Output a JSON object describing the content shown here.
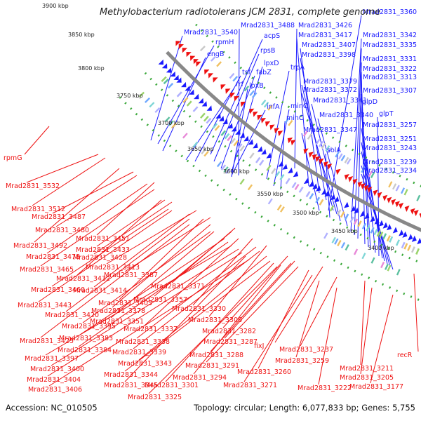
{
  "title": "Methylobacterium radiotolerans JCM 2831, complete genome",
  "footer": {
    "accession": "Accession: NC_010505",
    "topology": "Topology: circular; Length: 6,077,833 bp; Genes: 5,755"
  },
  "kbp_ticks": [
    "3900 kbp",
    "3850 kbp",
    "3800 kbp",
    "3750 kbp",
    "3700 kbp",
    "3650 kbp",
    "3600 kbp",
    "3550 kbp",
    "3500 kbp",
    "3450 kbp",
    "3400 kbp"
  ],
  "colors": {
    "forward_strand": "#1a1aff",
    "reverse_strand": "#ee1111",
    "backbone": "#888888",
    "ring_dash": "#3aa83a"
  },
  "forward_labels": [
    "Mrad2831_3360",
    "Mrad2831_3488",
    "Mrad2831_3426",
    "Mrad2831_3540",
    "acpS",
    "Mrad2831_3417",
    "Mrad2831_3342",
    "rpmH",
    "Mrad2831_3407",
    "Mrad2831_3335",
    "rpsB",
    "Mrad2831_3398",
    "engB",
    "lpxD",
    "Mrad2831_3331",
    "trpA",
    "Mrad2831_3322",
    "tsf",
    "fabZ",
    "Mrad2831_3313",
    "rrf",
    "lpxB",
    "Mrad2831_3379",
    "Mrad2831_3372",
    "Mrad2831_3307",
    "glpD",
    "Mrad2831_3341",
    "infA",
    "minC",
    "Mrad2831_3340",
    "glpT",
    "minC",
    "Mrad2831_3257",
    "Mrad2831_3347",
    "Mrad2831_3251",
    "solA",
    "Mrad2831_3243",
    "Mrad2831_3239",
    "Mrad2831_3234"
  ],
  "reverse_labels": [
    "rpmG",
    "Mrad2831_3532",
    "Mrad2831_3512",
    "Mrad2831_3487",
    "Mrad2831_3480",
    "Mrad2831_3451",
    "Mrad2831_3492",
    "Mrad2831_3433",
    "Mrad2831_3478",
    "Mrad2831_3428",
    "Mrad2831_3465",
    "Mrad2831_3413",
    "Mrad2831_3432",
    "Mrad2831_3387",
    "Mrad2831_3460",
    "Mrad2831_3414",
    "Mrad2831_3371",
    "Mrad2831_3405",
    "Mrad2831_3443",
    "Mrad2831_3357",
    "Mrad2831_3420",
    "Mrad2831_3378",
    "Mrad2831_3330",
    "Mrad2831_3351",
    "Mrad2831_3306",
    "Mrad2831_3395",
    "Mrad2831_3337",
    "Mrad2831_3282",
    "Mrad2831_3425",
    "Mrad2831_3383",
    "Mrad2831_3338",
    "Mrad2831_3287",
    "Mrad2831_3384",
    "Mrad2831_3339",
    "Mrad2831_3288",
    "fixJ",
    "Mrad2831_3237",
    "Mrad2831_3397",
    "Mrad2831_3343",
    "Mrad2831_3291",
    "Mrad2831_3259",
    "recR",
    "Mrad2831_3400",
    "Mrad2831_3344",
    "Mrad2831_3260",
    "Mrad2831_3211",
    "Mrad2831_3404",
    "Mrad2831_3294",
    "Mrad2831_3271",
    "Mrad2831_3205",
    "Mrad2831_3345",
    "Mrad2831_3301",
    "Mrad2831_3222",
    "Mrad2831_3177",
    "Mrad2831_3406",
    "Mrad2831_3325"
  ]
}
